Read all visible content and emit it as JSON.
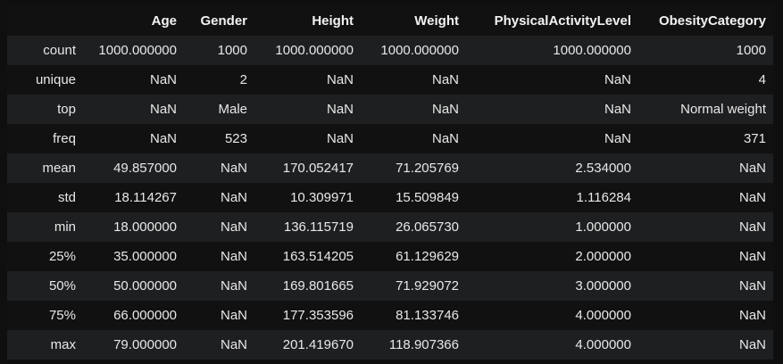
{
  "table": {
    "columns": [
      "",
      "Age",
      "Gender",
      "Height",
      "Weight",
      "PhysicalActivityLevel",
      "ObesityCategory"
    ],
    "rows": [
      {
        "label": "count",
        "cells": [
          "1000.000000",
          "1000",
          "1000.000000",
          "1000.000000",
          "1000.000000",
          "1000"
        ]
      },
      {
        "label": "unique",
        "cells": [
          "NaN",
          "2",
          "NaN",
          "NaN",
          "NaN",
          "4"
        ]
      },
      {
        "label": "top",
        "cells": [
          "NaN",
          "Male",
          "NaN",
          "NaN",
          "NaN",
          "Normal weight"
        ]
      },
      {
        "label": "freq",
        "cells": [
          "NaN",
          "523",
          "NaN",
          "NaN",
          "NaN",
          "371"
        ]
      },
      {
        "label": "mean",
        "cells": [
          "49.857000",
          "NaN",
          "170.052417",
          "71.205769",
          "2.534000",
          "NaN"
        ]
      },
      {
        "label": "std",
        "cells": [
          "18.114267",
          "NaN",
          "10.309971",
          "15.509849",
          "1.116284",
          "NaN"
        ]
      },
      {
        "label": "min",
        "cells": [
          "18.000000",
          "NaN",
          "136.115719",
          "26.065730",
          "1.000000",
          "NaN"
        ]
      },
      {
        "label": "25%",
        "cells": [
          "35.000000",
          "NaN",
          "163.514205",
          "61.129629",
          "2.000000",
          "NaN"
        ]
      },
      {
        "label": "50%",
        "cells": [
          "50.000000",
          "NaN",
          "169.801665",
          "71.929072",
          "3.000000",
          "NaN"
        ]
      },
      {
        "label": "75%",
        "cells": [
          "66.000000",
          "NaN",
          "177.353596",
          "81.133746",
          "4.000000",
          "NaN"
        ]
      },
      {
        "label": "max",
        "cells": [
          "79.000000",
          "NaN",
          "201.419670",
          "118.907366",
          "4.000000",
          "NaN"
        ]
      }
    ]
  }
}
